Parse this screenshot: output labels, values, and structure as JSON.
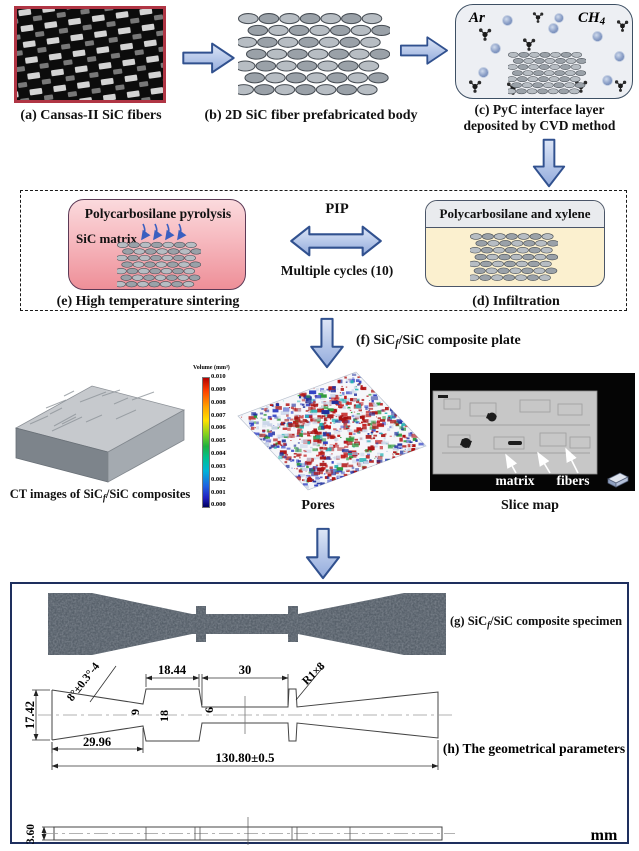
{
  "figure": {
    "a_label": "(a) Cansas-II SiC fibers",
    "b_label": "(b) 2D SiC fiber prefabricated body",
    "c_label_1": "(c) PyC interface layer",
    "c_label_2": "deposited by CVD method",
    "c_gas_ar": "Ar",
    "c_gas_ch": "CH",
    "c_gas_ch_sub": "4",
    "e_title": "Polycarbosilane pyrolysis",
    "e_matrix": "SiC matrix",
    "e_label": "(e) High temperature sintering",
    "pip_label": "PIP",
    "pip_cycles": "Multiple cycles (10)",
    "d_header": "Polycarbosilane and xylene",
    "d_label": "(d) Infiltration",
    "f_prefix": "(f) SiC",
    "f_sub": "f",
    "f_suffix": "/SiC composite plate",
    "ct_prefix": "CT images of SiC",
    "ct_sub": "f",
    "ct_suffix": "/SiC composites",
    "colorbar_title": "Volume (mm³)",
    "colorbar_ticks": [
      "0.010",
      "0.009",
      "0.008",
      "0.007",
      "0.006",
      "0.005",
      "0.004",
      "0.003",
      "0.002",
      "0.001",
      "0.000"
    ],
    "pores_label": "Pores",
    "slice_label": "Slice map",
    "slice_matrix": "matrix",
    "slice_fibers": "fibers",
    "g_prefix": "(g) SiC",
    "g_sub": "f",
    "g_suffix": "/SiC composite specimen",
    "h_label": "(h) The geometrical parameters",
    "dim_angle": "8°±0.3°-4",
    "dim_18_44": "18.44",
    "dim_30": "30",
    "dim_r1x8": "R1×8",
    "dim_17_42": "17.42",
    "dim_9": "9",
    "dim_18": "18",
    "dim_6": "6",
    "dim_29_96": "29.96",
    "dim_total": "130.80±0.5",
    "dim_thickness": "3.60",
    "unit": "mm"
  },
  "colors": {
    "arrow_fill_light": "#dde6f7",
    "arrow_fill_dark": "#93abdc",
    "arrow_stroke": "#31518f",
    "photo_border": "#b03544",
    "pink_top": "#fbdadd",
    "pink_bottom": "#ee8f98",
    "cream_body": "#fbf0cf",
    "navy_border": "#1e2f5e"
  }
}
